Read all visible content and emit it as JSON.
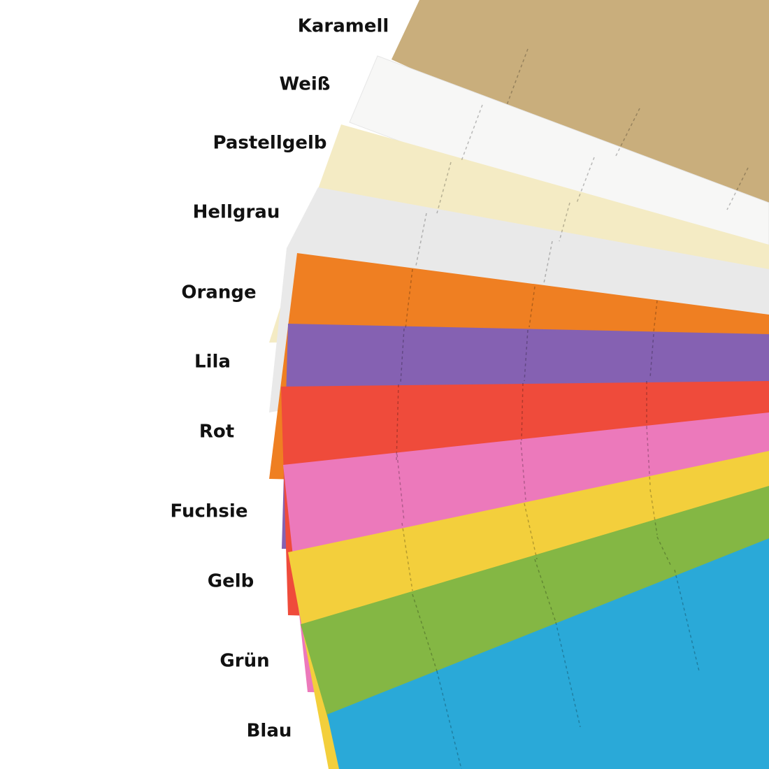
{
  "labels": [
    "Karamell",
    "Weiß",
    "Pastellgelb",
    "Hellgrau",
    "Orange",
    "Lila",
    "Rot",
    "Fuchsie",
    "Gelb",
    "Grün",
    "Blau"
  ]
}
